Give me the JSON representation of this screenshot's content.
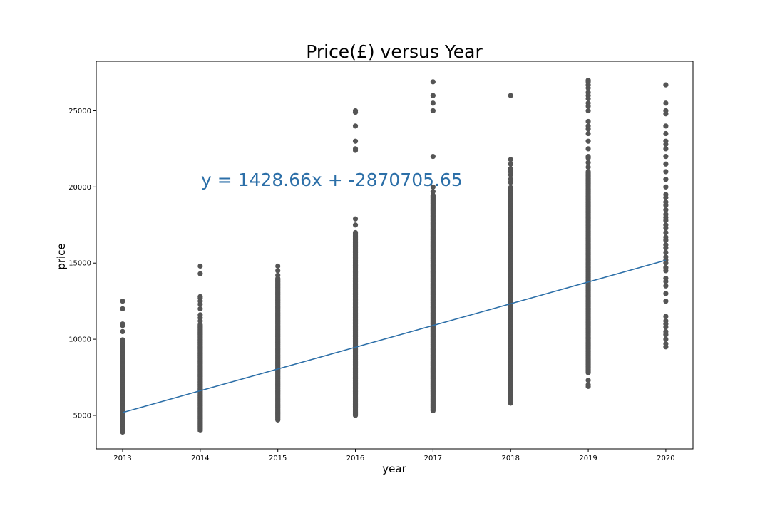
{
  "chart_data": {
    "type": "scatter",
    "title": "Price(£) versus Year",
    "xlabel": "year",
    "ylabel": "price",
    "xlim": [
      2012.66,
      2020.35
    ],
    "ylim": [
      2800,
      28250
    ],
    "grid": false,
    "x_ticks": [
      "2013",
      "2014",
      "2015",
      "2016",
      "2017",
      "2018",
      "2019",
      "2020"
    ],
    "y_ticks": [
      "5000",
      "10000",
      "15000",
      "20000",
      "25000"
    ],
    "point_color": "#555555",
    "line_color": "#2c6fa8",
    "series": [
      {
        "x": 2013,
        "dense_range": [
          3900,
          10000
        ],
        "values": [
          10500,
          10900,
          11000,
          12000,
          12500
        ]
      },
      {
        "x": 2014,
        "dense_range": [
          4000,
          11000
        ],
        "values": [
          11200,
          11400,
          11600,
          12000,
          12300,
          12500,
          12700,
          12800,
          14300,
          14800
        ]
      },
      {
        "x": 2015,
        "dense_range": [
          4700,
          14000
        ],
        "values": [
          14200,
          14500,
          14800
        ]
      },
      {
        "x": 2016,
        "dense_range": [
          5000,
          17000
        ],
        "values": [
          17500,
          17900,
          22400,
          22500,
          23000,
          24000,
          24900,
          25000
        ]
      },
      {
        "x": 2017,
        "dense_range": [
          5300,
          19500
        ],
        "values": [
          19700,
          20000,
          22000,
          25000,
          25500,
          26000,
          26900
        ]
      },
      {
        "x": 2018,
        "dense_range": [
          5800,
          20000
        ],
        "values": [
          20300,
          20500,
          20800,
          21000,
          21200,
          21500,
          21800,
          26000
        ]
      },
      {
        "x": 2019,
        "dense_range": [
          7800,
          21000
        ],
        "values": [
          6900,
          7000,
          7300,
          21300,
          21600,
          21900,
          22000,
          22500,
          23000,
          23500,
          23800,
          24000,
          24300,
          25000,
          25300,
          25500,
          25800,
          26000,
          26200,
          26500,
          26700,
          26900,
          27000
        ]
      },
      {
        "x": 2020,
        "values": [
          9500,
          9700,
          10000,
          10300,
          10500,
          10800,
          11000,
          11200,
          11500,
          12500,
          13000,
          13500,
          13800,
          14000,
          14500,
          14700,
          15000,
          15200,
          15400,
          15700,
          16000,
          16200,
          16500,
          16700,
          17000,
          17300,
          17500,
          17800,
          18000,
          18200,
          18500,
          18800,
          19000,
          19300,
          19500,
          20000,
          20500,
          21000,
          21500,
          22000,
          22500,
          22800,
          23000,
          23500,
          24000,
          24800,
          25000,
          25500,
          26700
        ]
      }
    ],
    "regression": {
      "slope": 1428.66,
      "intercept": -2870705.65,
      "x_range": [
        2013,
        2020
      ],
      "equation_label": "y = 1428.66x + -2870705.65"
    }
  }
}
